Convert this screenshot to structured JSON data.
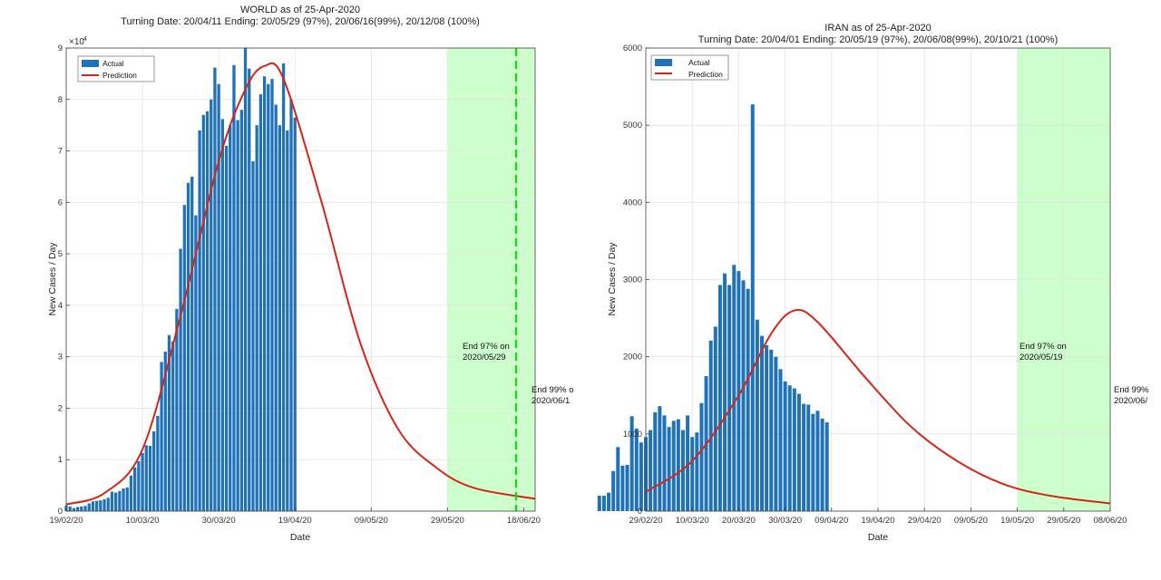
{
  "charts": [
    {
      "title": "WORLD as of 25-Apr-2020",
      "subtitle": "Turning Date: 20/04/11  Ending: 20/05/29 (97%), 20/06/16(99%), 20/12/08 (100%)",
      "ylabel": "New Cases / Day",
      "xlabel": "Date",
      "exp_base": "×10",
      "exp_power": "4",
      "ytick_labels": [
        "0",
        "1",
        "2",
        "3",
        "4",
        "5",
        "6",
        "7",
        "8",
        "9"
      ],
      "xtick_labels": [
        "19/02/20",
        "10/03/20",
        "30/03/20",
        "19/04/20",
        "09/05/20",
        "29/05/20",
        "18/06/20"
      ],
      "legend": [
        "Actual",
        "Prediction"
      ],
      "annot97": [
        "End 97% on",
        "2020/05/29"
      ],
      "annot99": [
        "End 99% o",
        "2020/06/1"
      ]
    },
    {
      "title": "IRAN as of 25-Apr-2020",
      "subtitle": "Turning Date: 20/04/01  Ending: 20/05/19 (97%), 20/06/08(99%), 20/10/21 (100%)",
      "ylabel": "New Cases / Day",
      "xlabel": "Date",
      "ytick_labels": [
        "0",
        "1000",
        "2000",
        "3000",
        "4000",
        "5000",
        "6000"
      ],
      "xtick_labels": [
        "29/02/20",
        "10/03/20",
        "20/03/20",
        "30/03/20",
        "09/04/20",
        "19/04/20",
        "29/04/20",
        "09/05/20",
        "19/05/20",
        "29/05/20",
        "08/06/20"
      ],
      "legend": [
        "Actual",
        "Prediction"
      ],
      "annot97": [
        "End 97% on",
        "2020/05/19"
      ],
      "annot99": [
        "End 99%",
        "2020/06/"
      ]
    }
  ],
  "colors": {
    "bar": "#1f72b8",
    "prediction": "#d62518",
    "end_region": "#ccffcc",
    "end_line": "#1ed31e"
  },
  "chart_data": [
    {
      "type": "bar",
      "name": "WORLD",
      "x_start": "2020-02-19",
      "x_range": [
        "2020-02-19",
        "2020-06-21"
      ],
      "ylim": [
        0,
        90000
      ],
      "grid": true,
      "legend_position": "top-left",
      "actual": [
        1100,
        900,
        600,
        800,
        900,
        1000,
        1500,
        1900,
        2000,
        2100,
        2300,
        2600,
        3800,
        3600,
        3900,
        4400,
        4600,
        6900,
        8500,
        9700,
        11300,
        12800,
        12700,
        15500,
        18500,
        29000,
        31000,
        34200,
        33000,
        39300,
        51000,
        59500,
        63800,
        65000,
        57500,
        74000,
        77000,
        77700,
        80000,
        86200,
        83000,
        76200,
        71000,
        75000,
        86700,
        76000,
        78000,
        90000,
        86000,
        68000,
        75000,
        81000,
        84500,
        83000,
        84000,
        79000,
        75000,
        87000,
        74000,
        80000,
        76500
      ],
      "prediction_points": [
        [
          "2020-02-19",
          1300
        ],
        [
          "2020-02-29",
          3500
        ],
        [
          "2020-03-10",
          12000
        ],
        [
          "2020-03-20",
          38000
        ],
        [
          "2020-03-30",
          68000
        ],
        [
          "2020-04-06",
          82000
        ],
        [
          "2020-04-11",
          86500
        ],
        [
          "2020-04-16",
          84000
        ],
        [
          "2020-04-26",
          60000
        ],
        [
          "2020-05-06",
          33000
        ],
        [
          "2020-05-16",
          16000
        ],
        [
          "2020-05-26",
          8500
        ],
        [
          "2020-06-05",
          4500
        ],
        [
          "2020-06-21",
          2400
        ]
      ],
      "end_97": "2020-05-29",
      "end_99": "2020-06-16"
    },
    {
      "type": "bar",
      "name": "IRAN",
      "x_start": "2020-02-19",
      "x_range": [
        "2020-02-29",
        "2020-06-08"
      ],
      "ylim": [
        0,
        6000
      ],
      "grid": true,
      "legend_position": "top-left",
      "actual": [
        200,
        200,
        240,
        520,
        830,
        590,
        600,
        1230,
        1070,
        890,
        960,
        1050,
        1280,
        1360,
        1240,
        1090,
        1170,
        1190,
        1050,
        1240,
        960,
        1020,
        1400,
        1750,
        2210,
        2390,
        2930,
        3080,
        2930,
        3190,
        3110,
        2990,
        2880,
        5270,
        2480,
        2270,
        2150,
        2090,
        2000,
        1840,
        1680,
        1630,
        1590,
        1520,
        1390,
        1380,
        1260,
        1300,
        1200,
        1150
      ],
      "prediction_points": [
        [
          "2020-02-29",
          250
        ],
        [
          "2020-03-10",
          650
        ],
        [
          "2020-03-20",
          1500
        ],
        [
          "2020-03-27",
          2300
        ],
        [
          "2020-04-01",
          2600
        ],
        [
          "2020-04-06",
          2450
        ],
        [
          "2020-04-16",
          1750
        ],
        [
          "2020-04-26",
          1100
        ],
        [
          "2020-05-06",
          650
        ],
        [
          "2020-05-16",
          350
        ],
        [
          "2020-05-26",
          200
        ],
        [
          "2020-06-08",
          100
        ]
      ],
      "end_97": "2020-05-19",
      "end_99": "2020-06-08"
    }
  ]
}
